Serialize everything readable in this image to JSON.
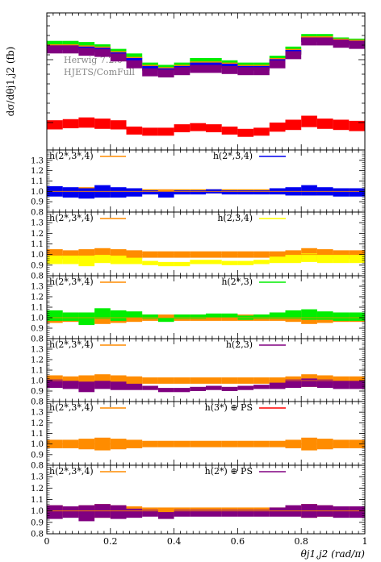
{
  "chart_data": {
    "type": "area",
    "x_bins": [
      0.0,
      0.05,
      0.1,
      0.15,
      0.2,
      0.25,
      0.3,
      0.35,
      0.4,
      0.45,
      0.5,
      0.55,
      0.6,
      0.65,
      0.7,
      0.75,
      0.8,
      0.85,
      0.9,
      0.95,
      1.0
    ],
    "xlim": [
      0,
      1
    ],
    "x_ticks": [
      {
        "v": 0,
        "label": "0"
      },
      {
        "v": 0.2,
        "label": "0.2"
      },
      {
        "v": 0.4,
        "label": "0.4"
      },
      {
        "v": 0.6,
        "label": "0.6"
      },
      {
        "v": 0.8,
        "label": "0.8"
      },
      {
        "v": 1,
        "label": "1"
      }
    ],
    "xlabel": "θj1,j2 (rad/π)",
    "main": {
      "ylabel": "dσ/dθj1,j2 (fb)",
      "watermark": [
        "Herwig 7.2.0",
        "HJETS/ComFull"
      ],
      "series": [
        {
          "color": "#ff0000",
          "values": [
            2.2,
            2.3,
            2.4,
            2.3,
            2.2,
            1.7,
            1.6,
            1.6,
            1.9,
            2.0,
            1.9,
            1.7,
            1.5,
            1.6,
            2.0,
            2.2,
            2.5,
            2.3,
            2.2,
            2.1
          ],
          "err": [
            0.4,
            0.4,
            0.45,
            0.45,
            0.4,
            0.35,
            0.35,
            0.35,
            0.35,
            0.35,
            0.35,
            0.35,
            0.35,
            0.35,
            0.4,
            0.45,
            0.5,
            0.45,
            0.45,
            0.45
          ]
        },
        {
          "color": "#00ee00",
          "values": [
            9.3,
            9.3,
            9.2,
            9.0,
            8.6,
            8.2,
            7.4,
            7.2,
            7.4,
            7.8,
            7.8,
            7.6,
            7.4,
            7.4,
            8.0,
            8.8,
            9.9,
            9.9,
            9.6,
            9.5
          ],
          "err": [
            0.25,
            0.25,
            0.25,
            0.25,
            0.25,
            0.25,
            0.25,
            0.25,
            0.25,
            0.25,
            0.25,
            0.25,
            0.25,
            0.25,
            0.25,
            0.25,
            0.25,
            0.25,
            0.25,
            0.25
          ]
        },
        {
          "color": "#ff8c00",
          "values": [
            9.0,
            9.0,
            8.9,
            8.8,
            8.4,
            7.9,
            7.2,
            7.0,
            7.2,
            7.5,
            7.5,
            7.4,
            7.2,
            7.2,
            7.8,
            8.6,
            9.7,
            9.7,
            9.5,
            9.4
          ],
          "err": [
            0.25,
            0.25,
            0.25,
            0.25,
            0.25,
            0.25,
            0.25,
            0.25,
            0.25,
            0.25,
            0.25,
            0.25,
            0.25,
            0.25,
            0.25,
            0.25,
            0.25,
            0.25,
            0.25,
            0.25
          ]
        },
        {
          "color": "#0000ee",
          "values": [
            8.95,
            8.95,
            8.85,
            8.75,
            8.35,
            7.85,
            7.15,
            6.95,
            7.15,
            7.45,
            7.45,
            7.35,
            7.15,
            7.15,
            7.75,
            8.55,
            9.65,
            9.65,
            9.45,
            9.35
          ],
          "err": [
            0.2,
            0.2,
            0.2,
            0.2,
            0.2,
            0.2,
            0.2,
            0.2,
            0.2,
            0.2,
            0.2,
            0.2,
            0.2,
            0.2,
            0.2,
            0.2,
            0.2,
            0.2,
            0.2,
            0.2
          ]
        },
        {
          "color": "#800080",
          "values": [
            8.8,
            8.8,
            8.6,
            8.5,
            8.1,
            7.5,
            6.8,
            6.7,
            6.9,
            7.1,
            7.1,
            7.0,
            6.9,
            6.9,
            7.5,
            8.3,
            9.5,
            9.5,
            9.3,
            9.2
          ],
          "err": [
            0.35,
            0.35,
            0.35,
            0.35,
            0.35,
            0.35,
            0.35,
            0.35,
            0.35,
            0.35,
            0.35,
            0.35,
            0.35,
            0.35,
            0.35,
            0.35,
            0.35,
            0.35,
            0.35,
            0.35
          ]
        }
      ]
    },
    "ratio_ylim": [
      0.8,
      1.4
    ],
    "ratio_ticks": [
      0.8,
      0.9,
      1.0,
      1.1,
      1.2,
      1.3
    ],
    "ratio_reference": {
      "label": "h(2*,3*,4)",
      "color": "#ff8c00"
    },
    "ratio_panels": [
      {
        "label": "h(2*,3,4)",
        "color": "#0000ee",
        "ref_halfwidth": [
          0.03,
          0.03,
          0.04,
          0.04,
          0.03,
          0.03,
          0.02,
          0.02,
          0.02,
          0.02,
          0.02,
          0.02,
          0.02,
          0.02,
          0.02,
          0.03,
          0.04,
          0.03,
          0.03,
          0.03
        ],
        "values": [
          1.0,
          0.99,
          0.98,
          1.0,
          0.99,
          0.99,
          0.99,
          0.97,
          0.99,
          0.99,
          1.0,
          0.99,
          0.99,
          0.99,
          1.0,
          1.0,
          1.01,
          1.0,
          0.99,
          0.99
        ],
        "err": [
          0.05,
          0.05,
          0.05,
          0.06,
          0.05,
          0.04,
          0.02,
          0.03,
          0.02,
          0.02,
          0.02,
          0.02,
          0.02,
          0.02,
          0.03,
          0.04,
          0.05,
          0.04,
          0.04,
          0.04
        ]
      },
      {
        "label": "h(2,3,4)",
        "color": "#ffff00",
        "ref_halfwidth": [
          0.05,
          0.04,
          0.05,
          0.06,
          0.05,
          0.04,
          0.03,
          0.03,
          0.03,
          0.03,
          0.03,
          0.03,
          0.03,
          0.03,
          0.03,
          0.04,
          0.06,
          0.05,
          0.04,
          0.04
        ],
        "values": [
          0.95,
          0.95,
          0.94,
          0.96,
          0.95,
          0.94,
          0.92,
          0.91,
          0.91,
          0.93,
          0.93,
          0.92,
          0.92,
          0.93,
          0.95,
          0.96,
          0.97,
          0.96,
          0.96,
          0.96
        ],
        "err": [
          0.04,
          0.04,
          0.05,
          0.04,
          0.04,
          0.03,
          0.02,
          0.02,
          0.02,
          0.02,
          0.02,
          0.02,
          0.02,
          0.02,
          0.03,
          0.04,
          0.04,
          0.04,
          0.04,
          0.04
        ]
      },
      {
        "label": "h(2*,3)",
        "color": "#00ee00",
        "ref_halfwidth": [
          0.05,
          0.04,
          0.05,
          0.06,
          0.05,
          0.04,
          0.03,
          0.03,
          0.03,
          0.03,
          0.03,
          0.03,
          0.03,
          0.03,
          0.03,
          0.04,
          0.06,
          0.05,
          0.04,
          0.04
        ],
        "values": [
          1.02,
          1.01,
          0.99,
          1.04,
          1.02,
          1.03,
          1.01,
          0.98,
          1.01,
          1.01,
          1.02,
          1.02,
          1.0,
          1.01,
          1.02,
          1.03,
          1.03,
          1.02,
          1.01,
          1.01
        ],
        "err": [
          0.05,
          0.04,
          0.06,
          0.05,
          0.05,
          0.03,
          0.02,
          0.02,
          0.02,
          0.02,
          0.02,
          0.02,
          0.02,
          0.02,
          0.03,
          0.04,
          0.05,
          0.04,
          0.04,
          0.04
        ]
      },
      {
        "label": "h(2,3)",
        "color": "#800080",
        "ref_halfwidth": [
          0.05,
          0.04,
          0.05,
          0.06,
          0.05,
          0.04,
          0.03,
          0.03,
          0.03,
          0.03,
          0.03,
          0.03,
          0.03,
          0.03,
          0.03,
          0.04,
          0.06,
          0.05,
          0.04,
          0.04
        ],
        "values": [
          0.97,
          0.96,
          0.94,
          0.96,
          0.95,
          0.94,
          0.93,
          0.91,
          0.91,
          0.92,
          0.93,
          0.92,
          0.93,
          0.94,
          0.95,
          0.97,
          0.98,
          0.97,
          0.96,
          0.96
        ],
        "err": [
          0.04,
          0.04,
          0.05,
          0.04,
          0.04,
          0.03,
          0.02,
          0.02,
          0.02,
          0.02,
          0.02,
          0.02,
          0.02,
          0.02,
          0.03,
          0.04,
          0.04,
          0.04,
          0.04,
          0.04
        ]
      },
      {
        "label": "h(3*) ⊕ PS",
        "color": "#ff0000",
        "ref_halfwidth": [
          0.04,
          0.04,
          0.05,
          0.06,
          0.05,
          0.04,
          0.03,
          0.03,
          0.03,
          0.03,
          0.03,
          0.03,
          0.03,
          0.03,
          0.03,
          0.04,
          0.06,
          0.05,
          0.04,
          0.04
        ],
        "values": [],
        "err": []
      },
      {
        "label": "h(2*) ⊕ PS",
        "color": "#800080",
        "ref_halfwidth": [
          0.05,
          0.04,
          0.05,
          0.06,
          0.05,
          0.04,
          0.03,
          0.03,
          0.03,
          0.03,
          0.03,
          0.03,
          0.03,
          0.03,
          0.03,
          0.04,
          0.06,
          0.05,
          0.04,
          0.04
        ],
        "values": [
          0.99,
          0.99,
          0.98,
          1.0,
          0.99,
          0.98,
          0.98,
          0.96,
          0.98,
          0.98,
          0.98,
          0.98,
          0.98,
          0.98,
          0.99,
          1.0,
          1.0,
          1.0,
          0.99,
          0.99
        ],
        "err": [
          0.06,
          0.05,
          0.07,
          0.06,
          0.06,
          0.04,
          0.03,
          0.03,
          0.03,
          0.03,
          0.03,
          0.03,
          0.03,
          0.03,
          0.04,
          0.05,
          0.06,
          0.05,
          0.05,
          0.05
        ]
      }
    ]
  }
}
